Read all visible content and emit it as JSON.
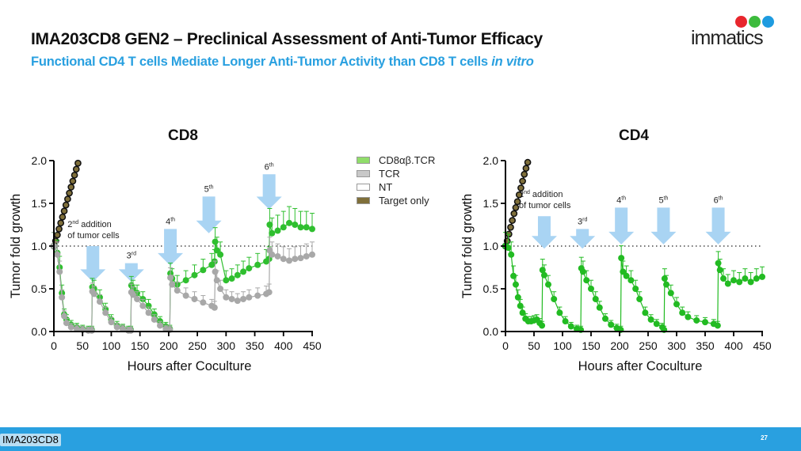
{
  "header": {
    "title": "IMA203CD8 GEN2 – Preclinical Assessment of Anti-Tumor Efficacy",
    "subtitle_main": "Functional CD4 T cells Mediate Longer Anti-Tumor Activity than CD8 T cells ",
    "subtitle_italic": "in vitro",
    "logo_text": "immatics",
    "logo_colors": [
      "#e8262d",
      "#3dbb3d",
      "#1e9be0"
    ]
  },
  "footer": {
    "tag": "IMA203CD8",
    "page_number": "27",
    "bar_color": "#29a0e0"
  },
  "legend": [
    {
      "label": "CD8αβ.TCR",
      "color": "#90dd6a"
    },
    {
      "label": "TCR",
      "color": "#c8c8c8"
    },
    {
      "label": "NT",
      "color": "#ffffff"
    },
    {
      "label": "Target only",
      "color": "#7f6f3a"
    }
  ],
  "chart_data": [
    {
      "type": "line",
      "title": "CD8",
      "xlabel": "Hours after Coculture",
      "ylabel": "Tumor fold growth",
      "xlim": [
        0,
        450
      ],
      "ylim": [
        0,
        2.0
      ],
      "xticks": [
        0,
        50,
        100,
        150,
        200,
        250,
        300,
        350,
        400,
        450
      ],
      "yticks": [
        "0.0",
        "0.5",
        "1.0",
        "1.5",
        "2.0"
      ],
      "reference_line": 1.0,
      "annotations": [
        {
          "x": 68,
          "y_tip": 0.58,
          "y_top": 1.0,
          "label": "2",
          "sup": "nd",
          "extra": " addition\nof tumor cells"
        },
        {
          "x": 135,
          "y_tip": 0.58,
          "y_top": 0.8,
          "label": "3",
          "sup": "rd"
        },
        {
          "x": 203,
          "y_tip": 0.77,
          "y_top": 1.2,
          "label": "4",
          "sup": "th"
        },
        {
          "x": 270,
          "y_tip": 1.15,
          "y_top": 1.58,
          "label": "5",
          "sup": "th"
        },
        {
          "x": 375,
          "y_tip": 1.43,
          "y_top": 1.84,
          "label": "6",
          "sup": "th"
        }
      ],
      "series": [
        {
          "name": "Target only",
          "color": "#7f6f3a",
          "x": [
            0,
            3,
            6,
            9,
            12,
            15,
            18,
            21,
            24,
            27,
            30,
            33,
            36,
            39,
            42
          ],
          "y": [
            1.0,
            1.06,
            1.13,
            1.2,
            1.27,
            1.34,
            1.41,
            1.48,
            1.55,
            1.62,
            1.69,
            1.76,
            1.83,
            1.9,
            1.97
          ]
        },
        {
          "name": "CD8αβ.TCR",
          "color": "#2fbf2f",
          "x": [
            0,
            6,
            10,
            14,
            18,
            22,
            30,
            40,
            50,
            60,
            66,
            67,
            70,
            80,
            90,
            100,
            110,
            120,
            130,
            134,
            135,
            138,
            145,
            155,
            165,
            175,
            185,
            195,
            202,
            203,
            206,
            215,
            230,
            245,
            260,
            275,
            280,
            281,
            284,
            290,
            300,
            310,
            320,
            330,
            340,
            355,
            370,
            375,
            376,
            380,
            390,
            400,
            410,
            420,
            430,
            440,
            450
          ],
          "y": [
            1.0,
            0.92,
            0.75,
            0.45,
            0.2,
            0.14,
            0.08,
            0.05,
            0.03,
            0.02,
            0.02,
            0.52,
            0.5,
            0.4,
            0.26,
            0.14,
            0.07,
            0.04,
            0.02,
            0.02,
            0.54,
            0.5,
            0.45,
            0.38,
            0.3,
            0.2,
            0.12,
            0.06,
            0.03,
            0.68,
            0.62,
            0.55,
            0.6,
            0.66,
            0.72,
            0.78,
            0.82,
            1.05,
            0.95,
            0.9,
            0.6,
            0.62,
            0.66,
            0.7,
            0.74,
            0.78,
            0.82,
            0.85,
            1.25,
            1.15,
            1.18,
            1.22,
            1.27,
            1.25,
            1.22,
            1.22,
            1.2
          ]
        },
        {
          "name": "TCR",
          "color": "#a8a8a8",
          "x": [
            0,
            6,
            10,
            14,
            18,
            22,
            30,
            40,
            50,
            60,
            66,
            67,
            70,
            80,
            90,
            100,
            110,
            120,
            130,
            134,
            135,
            138,
            145,
            155,
            165,
            175,
            185,
            195,
            202,
            203,
            206,
            215,
            230,
            245,
            260,
            275,
            280,
            281,
            284,
            290,
            300,
            310,
            320,
            330,
            340,
            355,
            370,
            375,
            376,
            380,
            390,
            400,
            410,
            420,
            430,
            440,
            450
          ],
          "y": [
            1.0,
            0.9,
            0.7,
            0.4,
            0.18,
            0.1,
            0.05,
            0.03,
            0.02,
            0.01,
            0.01,
            0.47,
            0.44,
            0.35,
            0.22,
            0.11,
            0.05,
            0.03,
            0.01,
            0.01,
            0.46,
            0.43,
            0.38,
            0.3,
            0.22,
            0.14,
            0.07,
            0.03,
            0.02,
            0.63,
            0.55,
            0.48,
            0.42,
            0.38,
            0.34,
            0.3,
            0.28,
            0.7,
            0.6,
            0.5,
            0.4,
            0.38,
            0.36,
            0.38,
            0.4,
            0.42,
            0.44,
            0.46,
            0.95,
            0.9,
            0.88,
            0.85,
            0.83,
            0.85,
            0.86,
            0.88,
            0.9
          ]
        }
      ]
    },
    {
      "type": "line",
      "title": "CD4",
      "xlabel": "Hours after Coculture",
      "ylabel": "Tumor fold growth",
      "xlim": [
        0,
        450
      ],
      "ylim": [
        0,
        2.0
      ],
      "xticks": [
        0,
        50,
        100,
        150,
        200,
        250,
        300,
        350,
        400,
        450
      ],
      "yticks": [
        "0.0",
        "0.5",
        "1.0",
        "1.5",
        "2.0"
      ],
      "reference_line": 1.0,
      "annotations": [
        {
          "x": 68,
          "y_tip": 0.97,
          "y_top": 1.35,
          "label": "2",
          "sup": "nd",
          "extra": " addition\nof tumor cells"
        },
        {
          "x": 135,
          "y_tip": 0.97,
          "y_top": 1.2,
          "label": "3",
          "sup": "rd"
        },
        {
          "x": 203,
          "y_tip": 1.02,
          "y_top": 1.45,
          "label": "4",
          "sup": "th"
        },
        {
          "x": 277,
          "y_tip": 1.02,
          "y_top": 1.45,
          "label": "5",
          "sup": "th"
        },
        {
          "x": 373,
          "y_tip": 1.02,
          "y_top": 1.45,
          "label": "6",
          "sup": "th"
        }
      ],
      "series": [
        {
          "name": "Target only",
          "color": "#7f6f3a",
          "x": [
            0,
            3,
            6,
            9,
            12,
            15,
            18,
            21,
            24,
            27,
            30,
            33,
            36,
            39
          ],
          "y": [
            1.0,
            1.06,
            1.14,
            1.22,
            1.3,
            1.38,
            1.45,
            1.52,
            1.6,
            1.68,
            1.76,
            1.84,
            1.91,
            1.98
          ]
        },
        {
          "name": "CD8αβ.TCR",
          "color": "#22bb22",
          "x": [
            0,
            5,
            10,
            14,
            18,
            22,
            26,
            30,
            35,
            40,
            45,
            50,
            55,
            60,
            64,
            65,
            68,
            75,
            85,
            95,
            105,
            115,
            125,
            132,
            133,
            136,
            142,
            150,
            158,
            165,
            175,
            185,
            195,
            202,
            203,
            206,
            212,
            220,
            228,
            235,
            245,
            255,
            265,
            275,
            278,
            279,
            282,
            290,
            300,
            310,
            320,
            335,
            350,
            365,
            372,
            373,
            376,
            382,
            390,
            400,
            410,
            420,
            430,
            440,
            450
          ],
          "y": [
            1.0,
            0.98,
            0.9,
            0.65,
            0.55,
            0.4,
            0.3,
            0.22,
            0.15,
            0.12,
            0.12,
            0.13,
            0.14,
            0.1,
            0.07,
            0.72,
            0.66,
            0.55,
            0.38,
            0.22,
            0.12,
            0.06,
            0.03,
            0.02,
            0.74,
            0.7,
            0.6,
            0.5,
            0.38,
            0.28,
            0.15,
            0.08,
            0.04,
            0.02,
            0.86,
            0.7,
            0.65,
            0.6,
            0.5,
            0.38,
            0.22,
            0.14,
            0.09,
            0.05,
            0.02,
            0.62,
            0.55,
            0.45,
            0.32,
            0.22,
            0.17,
            0.13,
            0.11,
            0.09,
            0.07,
            0.8,
            0.72,
            0.62,
            0.56,
            0.6,
            0.58,
            0.62,
            0.58,
            0.62,
            0.64
          ]
        }
      ]
    }
  ]
}
